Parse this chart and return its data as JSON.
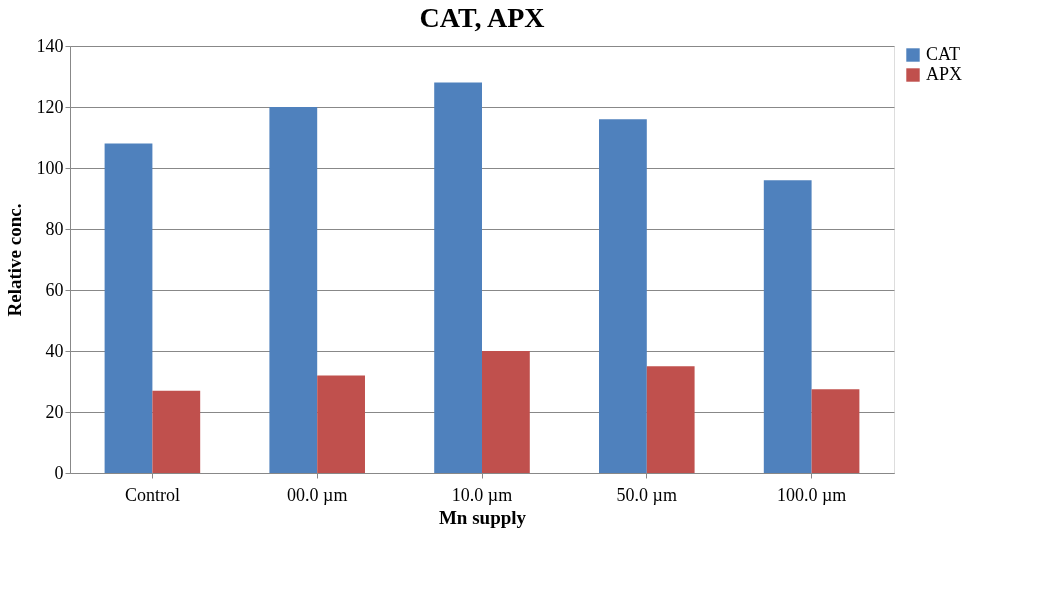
{
  "chart_data": {
    "type": "bar",
    "title": "CAT, APX",
    "xlabel": "Mn supply",
    "ylabel": "Relative conc.",
    "categories": [
      "Control",
      "00.0 µm",
      "10.0 µm",
      "50.0 µm",
      "100.0 µm"
    ],
    "series": [
      {
        "name": "CAT",
        "color": "#4f81bd",
        "values": [
          108,
          120,
          128,
          116,
          96
        ]
      },
      {
        "name": "APX",
        "color": "#c0504d",
        "values": [
          27,
          32,
          40,
          35,
          27.5
        ]
      }
    ],
    "ylim": [
      0,
      140
    ],
    "yticks": [
      0,
      20,
      40,
      60,
      80,
      100,
      120,
      140
    ],
    "grid": "y",
    "legend": "top right"
  }
}
